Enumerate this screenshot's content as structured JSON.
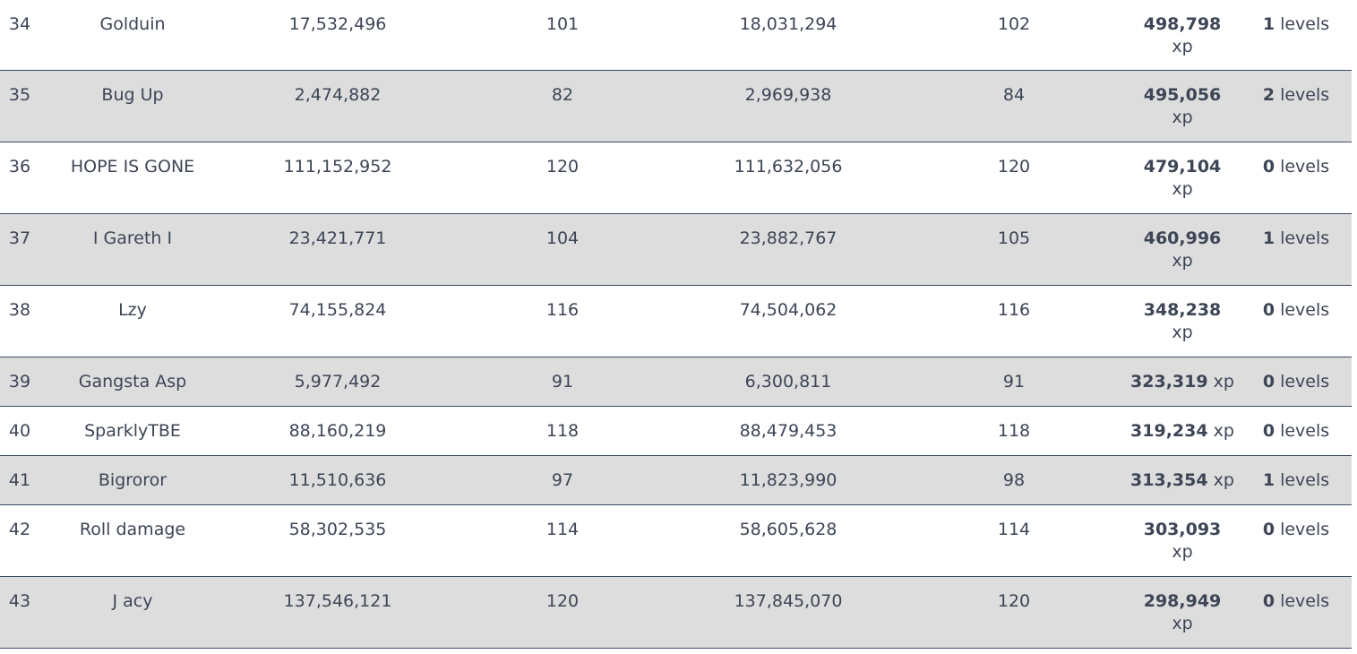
{
  "rows": [
    {
      "rank": "34",
      "name": "Golduin",
      "xp_start": "17,532,496",
      "lvl_start": "101",
      "xp_end": "18,031,294",
      "lvl_end": "102",
      "gain": "498,798",
      "gain_unit": "xp",
      "levels_num": "1",
      "levels_label": " levels"
    },
    {
      "rank": "35",
      "name": "Bug Up",
      "xp_start": "2,474,882",
      "lvl_start": "82",
      "xp_end": "2,969,938",
      "lvl_end": "84",
      "gain": "495,056",
      "gain_unit": "xp",
      "levels_num": "2",
      "levels_label": " levels"
    },
    {
      "rank": "36",
      "name": "HOPE IS GONE",
      "xp_start": "111,152,952",
      "lvl_start": "120",
      "xp_end": "111,632,056",
      "lvl_end": "120",
      "gain": "479,104",
      "gain_unit": "xp",
      "levels_num": "0",
      "levels_label": " levels"
    },
    {
      "rank": "37",
      "name": "I Gareth I",
      "xp_start": "23,421,771",
      "lvl_start": "104",
      "xp_end": "23,882,767",
      "lvl_end": "105",
      "gain": "460,996",
      "gain_unit": "xp",
      "levels_num": "1",
      "levels_label": " levels"
    },
    {
      "rank": "38",
      "name": "Lzy",
      "xp_start": "74,155,824",
      "lvl_start": "116",
      "xp_end": "74,504,062",
      "lvl_end": "116",
      "gain": "348,238",
      "gain_unit": "xp",
      "levels_num": "0",
      "levels_label": " levels"
    },
    {
      "rank": "39",
      "name": "Gangsta Asp",
      "xp_start": "5,977,492",
      "lvl_start": "91",
      "xp_end": "6,300,811",
      "lvl_end": "91",
      "gain": "323,319",
      "gain_unit": "xp",
      "levels_num": "0",
      "levels_label": " levels"
    },
    {
      "rank": "40",
      "name": "SparklyTBE",
      "xp_start": "88,160,219",
      "lvl_start": "118",
      "xp_end": "88,479,453",
      "lvl_end": "118",
      "gain": "319,234",
      "gain_unit": "xp",
      "levels_num": "0",
      "levels_label": " levels"
    },
    {
      "rank": "41",
      "name": "Bigroror",
      "xp_start": "11,510,636",
      "lvl_start": "97",
      "xp_end": "11,823,990",
      "lvl_end": "98",
      "gain": "313,354",
      "gain_unit": "xp",
      "levels_num": "1",
      "levels_label": " levels"
    },
    {
      "rank": "42",
      "name": "Roll damage",
      "xp_start": "58,302,535",
      "lvl_start": "114",
      "xp_end": "58,605,628",
      "lvl_end": "114",
      "gain": "303,093",
      "gain_unit": "xp",
      "levels_num": "0",
      "levels_label": " levels"
    },
    {
      "rank": "43",
      "name": "J acy",
      "xp_start": "137,546,121",
      "lvl_start": "120",
      "xp_end": "137,845,070",
      "lvl_end": "120",
      "gain": "298,949",
      "gain_unit": "xp",
      "levels_num": "0",
      "levels_label": " levels"
    }
  ]
}
